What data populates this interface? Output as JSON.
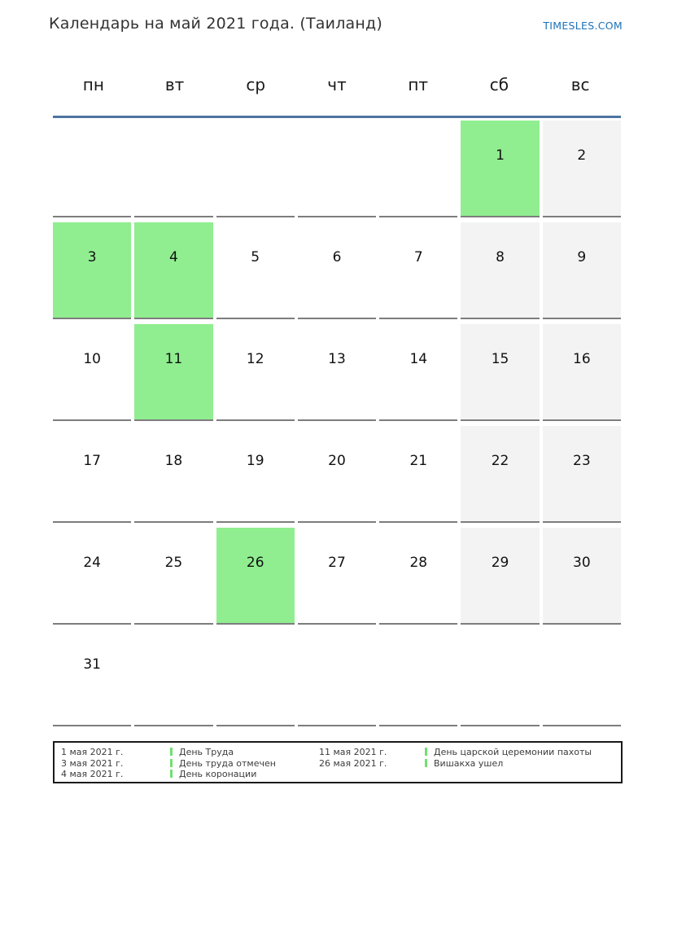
{
  "page": {
    "title": "Календарь на май 2021 года. (Таиланд)",
    "brand": "TIMESLES.COM"
  },
  "weekdays": [
    "пн",
    "вт",
    "ср",
    "чт",
    "пт",
    "сб",
    "вс"
  ],
  "calendar": {
    "month": "май 2021",
    "cells": [
      {
        "day": "",
        "type": "empty"
      },
      {
        "day": "",
        "type": "empty"
      },
      {
        "day": "",
        "type": "empty"
      },
      {
        "day": "",
        "type": "empty"
      },
      {
        "day": "",
        "type": "empty"
      },
      {
        "day": "1",
        "type": "holiday"
      },
      {
        "day": "2",
        "type": "weekend"
      },
      {
        "day": "3",
        "type": "holiday"
      },
      {
        "day": "4",
        "type": "holiday"
      },
      {
        "day": "5",
        "type": "day"
      },
      {
        "day": "6",
        "type": "day"
      },
      {
        "day": "7",
        "type": "day"
      },
      {
        "day": "8",
        "type": "weekend"
      },
      {
        "day": "9",
        "type": "weekend"
      },
      {
        "day": "10",
        "type": "day"
      },
      {
        "day": "11",
        "type": "holiday"
      },
      {
        "day": "12",
        "type": "day"
      },
      {
        "day": "13",
        "type": "day"
      },
      {
        "day": "14",
        "type": "day"
      },
      {
        "day": "15",
        "type": "weekend"
      },
      {
        "day": "16",
        "type": "weekend"
      },
      {
        "day": "17",
        "type": "day"
      },
      {
        "day": "18",
        "type": "day"
      },
      {
        "day": "19",
        "type": "day"
      },
      {
        "day": "20",
        "type": "day"
      },
      {
        "day": "21",
        "type": "day"
      },
      {
        "day": "22",
        "type": "weekend"
      },
      {
        "day": "23",
        "type": "weekend"
      },
      {
        "day": "24",
        "type": "day"
      },
      {
        "day": "25",
        "type": "day"
      },
      {
        "day": "26",
        "type": "holiday"
      },
      {
        "day": "27",
        "type": "day"
      },
      {
        "day": "28",
        "type": "day"
      },
      {
        "day": "29",
        "type": "weekend"
      },
      {
        "day": "30",
        "type": "weekend"
      },
      {
        "day": "31",
        "type": "day"
      },
      {
        "day": "",
        "type": "empty"
      },
      {
        "day": "",
        "type": "empty"
      },
      {
        "day": "",
        "type": "empty"
      },
      {
        "day": "",
        "type": "empty"
      },
      {
        "day": "",
        "type": "empty"
      },
      {
        "day": "",
        "type": "empty"
      }
    ]
  },
  "legend": {
    "columns": [
      {
        "entries": [
          {
            "date": "1 мая 2021 г.",
            "name": "День Труда"
          },
          {
            "date": "3 мая 2021 г.",
            "name": "День труда отмечен"
          },
          {
            "date": "4 мая 2021 г.",
            "name": "День коронации"
          }
        ]
      },
      {
        "entries": [
          {
            "date": "11 мая 2021 г.",
            "name": "День царской церемонии пахоты"
          },
          {
            "date": "26 мая 2021 г.",
            "name": "Вишакха ушел"
          }
        ]
      }
    ]
  },
  "colors": {
    "holiday": "#90ee90",
    "weekend": "#f3f3f3",
    "accent_line": "#4e74a1",
    "brand": "#1c72b8",
    "legend_marker": "#70e070"
  }
}
